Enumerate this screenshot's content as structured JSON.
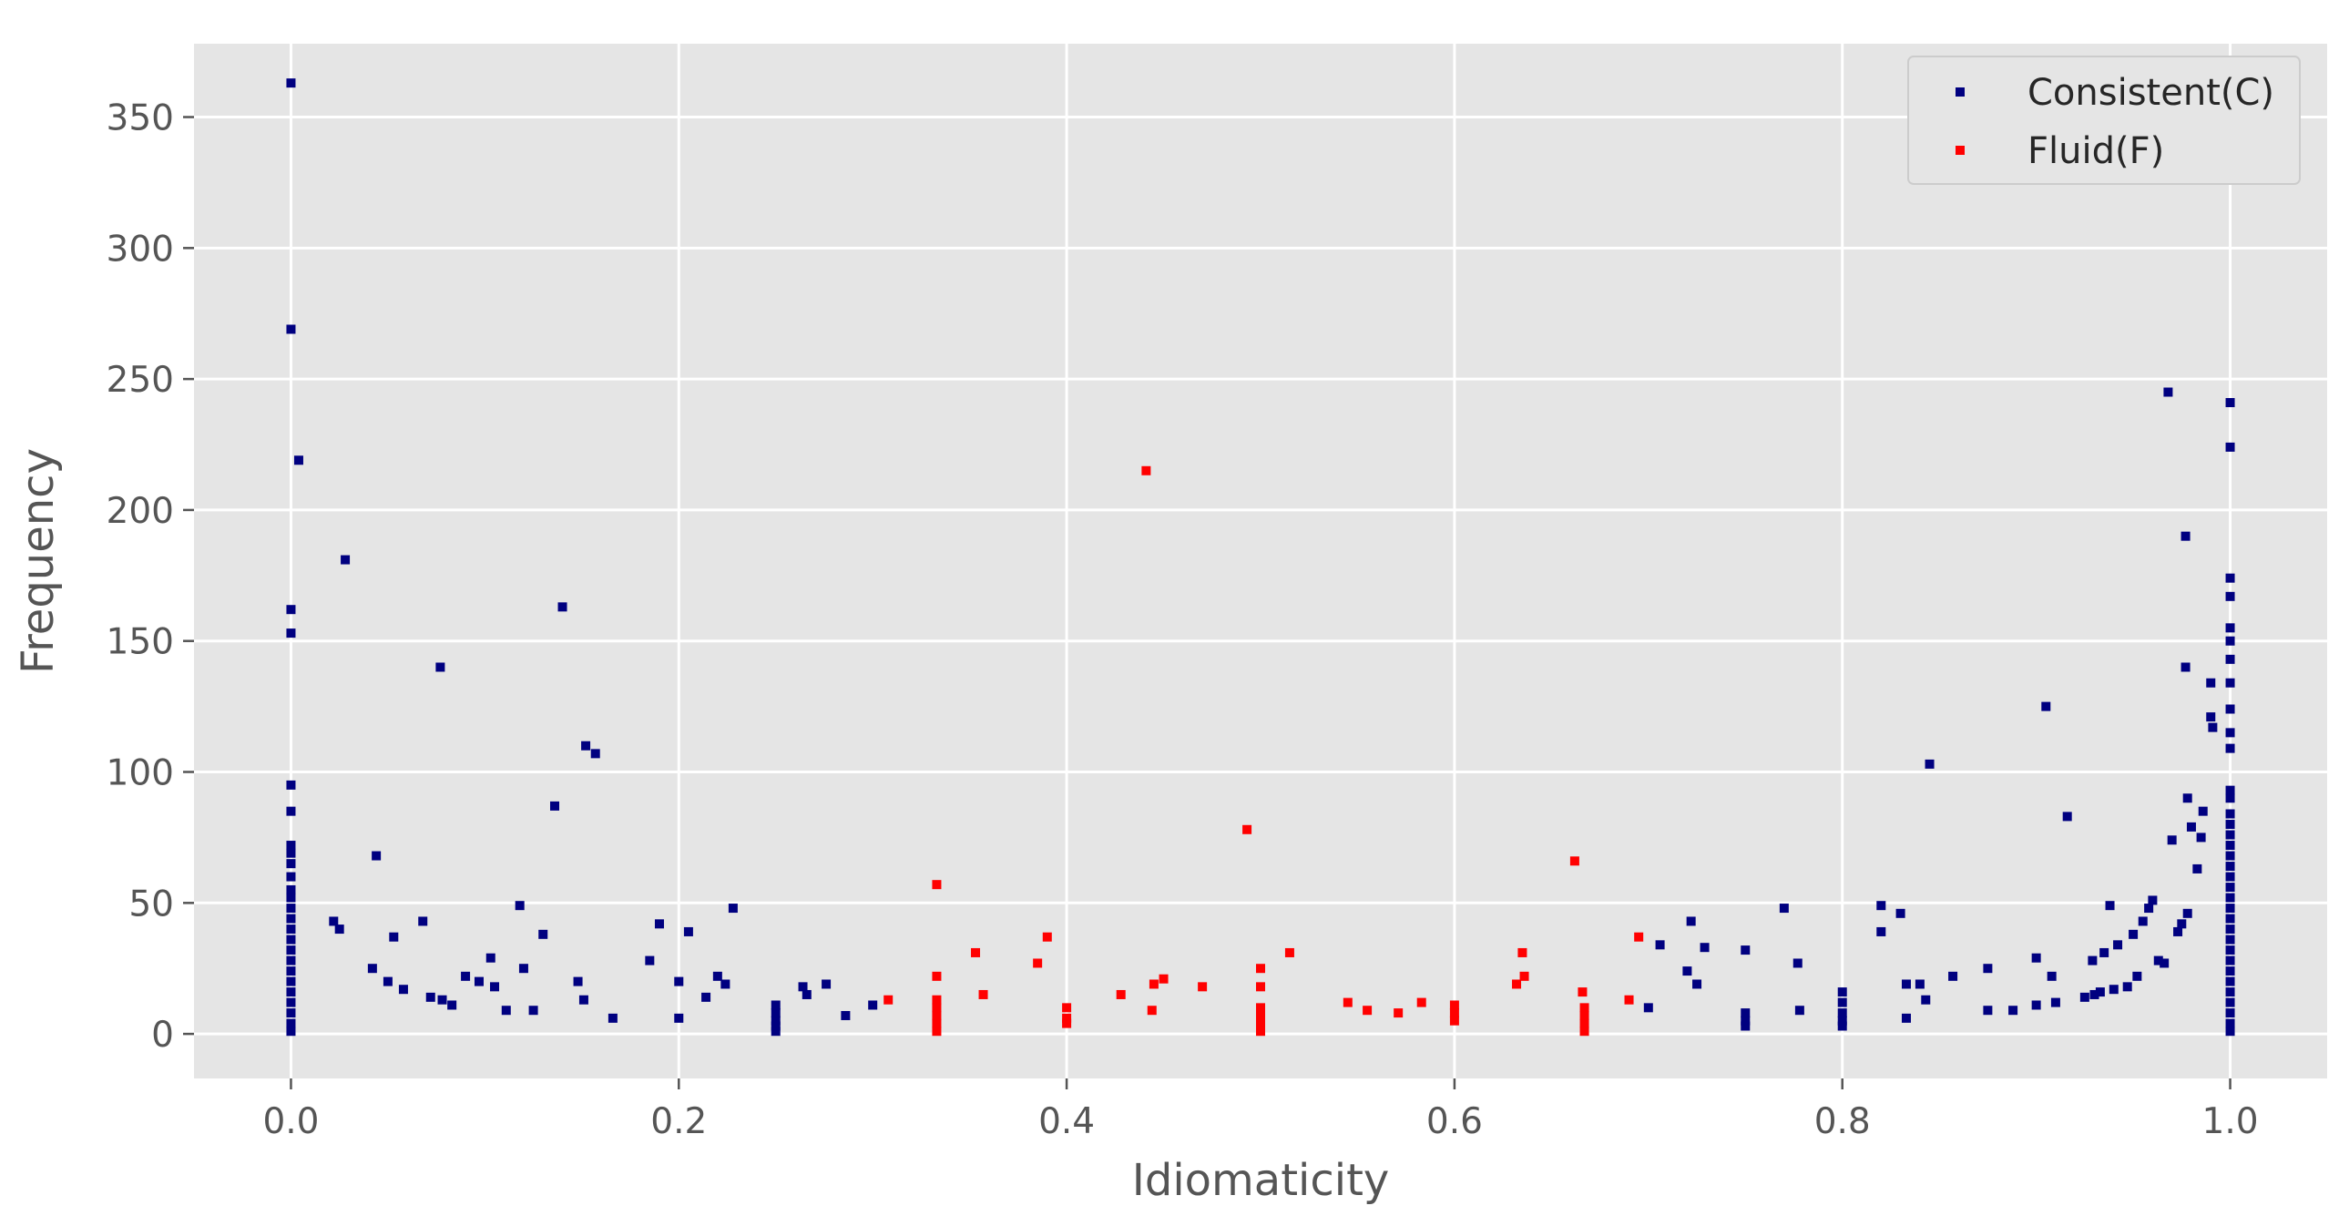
{
  "colors": {
    "background": "#e5e5e5",
    "grid": "#ffffff",
    "tick_text": "#555555",
    "legend_bg": "#e5e5e5",
    "legend_border": "#cccccc",
    "consistent": "#000080",
    "fluid": "#ff0000"
  },
  "chart_data": {
    "type": "scatter",
    "title": "",
    "xlabel": "Idiomaticity",
    "ylabel": "Frequency",
    "xlim": [
      -0.05,
      1.05
    ],
    "ylim": [
      -17,
      378
    ],
    "x_ticks": [
      0.0,
      0.2,
      0.4,
      0.6,
      0.8,
      1.0
    ],
    "x_tick_labels": [
      "0.0",
      "0.2",
      "0.4",
      "0.6",
      "0.8",
      "1.0"
    ],
    "y_ticks": [
      0,
      50,
      100,
      150,
      200,
      250,
      300,
      350
    ],
    "y_tick_labels": [
      "0",
      "50",
      "100",
      "150",
      "200",
      "250",
      "300",
      "350"
    ],
    "grid": true,
    "legend_position": "top-right",
    "series": [
      {
        "name": "Consistent(C)",
        "color": "#000080",
        "points": [
          [
            0.0,
            363
          ],
          [
            0.0,
            269
          ],
          [
            0.004,
            219
          ],
          [
            0.0,
            162
          ],
          [
            0.0,
            153
          ],
          [
            0.0,
            95
          ],
          [
            0.0,
            85
          ],
          [
            0.0,
            72
          ],
          [
            0.0,
            69
          ],
          [
            0.0,
            65
          ],
          [
            0.0,
            60
          ],
          [
            0.0,
            55
          ],
          [
            0.0,
            52
          ],
          [
            0.0,
            48
          ],
          [
            0.0,
            44
          ],
          [
            0.0,
            40
          ],
          [
            0.0,
            36
          ],
          [
            0.0,
            32
          ],
          [
            0.0,
            28
          ],
          [
            0.0,
            24
          ],
          [
            0.0,
            20
          ],
          [
            0.0,
            16
          ],
          [
            0.0,
            12
          ],
          [
            0.0,
            8
          ],
          [
            0.0,
            4
          ],
          [
            0.0,
            1
          ],
          [
            0.022,
            43
          ],
          [
            0.025,
            40
          ],
          [
            0.028,
            181
          ],
          [
            0.042,
            25
          ],
          [
            0.044,
            68
          ],
          [
            0.05,
            20
          ],
          [
            0.053,
            37
          ],
          [
            0.058,
            17
          ],
          [
            0.068,
            43
          ],
          [
            0.072,
            14
          ],
          [
            0.077,
            140
          ],
          [
            0.078,
            13
          ],
          [
            0.083,
            11
          ],
          [
            0.09,
            22
          ],
          [
            0.097,
            20
          ],
          [
            0.103,
            29
          ],
          [
            0.105,
            18
          ],
          [
            0.111,
            9
          ],
          [
            0.118,
            49
          ],
          [
            0.12,
            25
          ],
          [
            0.125,
            9
          ],
          [
            0.13,
            38
          ],
          [
            0.136,
            87
          ],
          [
            0.14,
            163
          ],
          [
            0.148,
            20
          ],
          [
            0.151,
            13
          ],
          [
            0.152,
            110
          ],
          [
            0.157,
            107
          ],
          [
            0.166,
            6
          ],
          [
            0.185,
            28
          ],
          [
            0.19,
            42
          ],
          [
            0.2,
            20
          ],
          [
            0.2,
            6
          ],
          [
            0.205,
            39
          ],
          [
            0.214,
            14
          ],
          [
            0.22,
            22
          ],
          [
            0.224,
            19
          ],
          [
            0.228,
            48
          ],
          [
            0.25,
            11
          ],
          [
            0.25,
            8
          ],
          [
            0.25,
            5
          ],
          [
            0.25,
            3
          ],
          [
            0.25,
            1
          ],
          [
            0.264,
            18
          ],
          [
            0.266,
            15
          ],
          [
            0.276,
            19
          ],
          [
            0.286,
            7
          ],
          [
            0.3,
            11
          ],
          [
            0.7,
            10
          ],
          [
            0.706,
            34
          ],
          [
            0.72,
            24
          ],
          [
            0.722,
            43
          ],
          [
            0.725,
            19
          ],
          [
            0.729,
            33
          ],
          [
            0.75,
            32
          ],
          [
            0.75,
            8
          ],
          [
            0.75,
            5
          ],
          [
            0.75,
            3
          ],
          [
            0.77,
            48
          ],
          [
            0.777,
            27
          ],
          [
            0.778,
            9
          ],
          [
            0.8,
            16
          ],
          [
            0.8,
            12
          ],
          [
            0.8,
            8
          ],
          [
            0.8,
            5
          ],
          [
            0.8,
            3
          ],
          [
            0.82,
            49
          ],
          [
            0.82,
            39
          ],
          [
            0.83,
            46
          ],
          [
            0.833,
            6
          ],
          [
            0.833,
            19
          ],
          [
            0.84,
            19
          ],
          [
            0.843,
            13
          ],
          [
            0.845,
            103
          ],
          [
            0.857,
            22
          ],
          [
            0.875,
            25
          ],
          [
            0.875,
            9
          ],
          [
            0.888,
            9
          ],
          [
            0.9,
            11
          ],
          [
            0.9,
            29
          ],
          [
            0.905,
            125
          ],
          [
            0.908,
            22
          ],
          [
            0.91,
            12
          ],
          [
            0.916,
            83
          ],
          [
            0.925,
            14
          ],
          [
            0.929,
            28
          ],
          [
            0.93,
            15
          ],
          [
            0.933,
            16
          ],
          [
            0.935,
            31
          ],
          [
            0.938,
            49
          ],
          [
            0.94,
            17
          ],
          [
            0.942,
            34
          ],
          [
            0.947,
            18
          ],
          [
            0.95,
            38
          ],
          [
            0.952,
            22
          ],
          [
            0.955,
            43
          ],
          [
            0.958,
            48
          ],
          [
            0.96,
            51
          ],
          [
            0.963,
            28
          ],
          [
            0.966,
            27
          ],
          [
            0.968,
            245
          ],
          [
            0.97,
            74
          ],
          [
            0.973,
            39
          ],
          [
            0.975,
            42
          ],
          [
            0.977,
            190
          ],
          [
            0.977,
            140
          ],
          [
            0.978,
            46
          ],
          [
            0.978,
            90
          ],
          [
            0.98,
            79
          ],
          [
            0.983,
            63
          ],
          [
            0.985,
            75
          ],
          [
            0.986,
            85
          ],
          [
            0.99,
            134
          ],
          [
            0.99,
            121
          ],
          [
            0.991,
            117
          ],
          [
            1.0,
            241
          ],
          [
            1.0,
            224
          ],
          [
            1.0,
            174
          ],
          [
            1.0,
            167
          ],
          [
            1.0,
            155
          ],
          [
            1.0,
            150
          ],
          [
            1.0,
            143
          ],
          [
            1.0,
            134
          ],
          [
            1.0,
            124
          ],
          [
            1.0,
            115
          ],
          [
            1.0,
            109
          ],
          [
            1.0,
            93
          ],
          [
            1.0,
            90
          ],
          [
            1.0,
            84
          ],
          [
            1.0,
            80
          ],
          [
            1.0,
            76
          ],
          [
            1.0,
            72
          ],
          [
            1.0,
            68
          ],
          [
            1.0,
            64
          ],
          [
            1.0,
            60
          ],
          [
            1.0,
            56
          ],
          [
            1.0,
            52
          ],
          [
            1.0,
            48
          ],
          [
            1.0,
            44
          ],
          [
            1.0,
            40
          ],
          [
            1.0,
            36
          ],
          [
            1.0,
            32
          ],
          [
            1.0,
            28
          ],
          [
            1.0,
            24
          ],
          [
            1.0,
            20
          ],
          [
            1.0,
            16
          ],
          [
            1.0,
            12
          ],
          [
            1.0,
            8
          ],
          [
            1.0,
            4
          ],
          [
            1.0,
            1
          ]
        ]
      },
      {
        "name": "Fluid(F)",
        "color": "#ff0000",
        "points": [
          [
            0.308,
            13
          ],
          [
            0.333,
            57
          ],
          [
            0.333,
            22
          ],
          [
            0.333,
            13
          ],
          [
            0.333,
            10
          ],
          [
            0.333,
            7
          ],
          [
            0.333,
            4
          ],
          [
            0.333,
            1
          ],
          [
            0.353,
            31
          ],
          [
            0.357,
            15
          ],
          [
            0.385,
            27
          ],
          [
            0.39,
            37
          ],
          [
            0.4,
            10
          ],
          [
            0.4,
            6
          ],
          [
            0.4,
            4
          ],
          [
            0.428,
            15
          ],
          [
            0.441,
            215
          ],
          [
            0.444,
            9
          ],
          [
            0.445,
            19
          ],
          [
            0.45,
            21
          ],
          [
            0.47,
            18
          ],
          [
            0.493,
            78
          ],
          [
            0.5,
            25
          ],
          [
            0.5,
            18
          ],
          [
            0.5,
            10
          ],
          [
            0.5,
            7
          ],
          [
            0.5,
            4
          ],
          [
            0.5,
            1
          ],
          [
            0.515,
            31
          ],
          [
            0.545,
            12
          ],
          [
            0.555,
            9
          ],
          [
            0.571,
            8
          ],
          [
            0.583,
            12
          ],
          [
            0.6,
            11
          ],
          [
            0.6,
            8
          ],
          [
            0.6,
            5
          ],
          [
            0.632,
            19
          ],
          [
            0.635,
            31
          ],
          [
            0.636,
            22
          ],
          [
            0.662,
            66
          ],
          [
            0.666,
            16
          ],
          [
            0.667,
            10
          ],
          [
            0.667,
            7
          ],
          [
            0.667,
            4
          ],
          [
            0.667,
            1
          ],
          [
            0.69,
            13
          ],
          [
            0.695,
            37
          ]
        ]
      }
    ]
  }
}
